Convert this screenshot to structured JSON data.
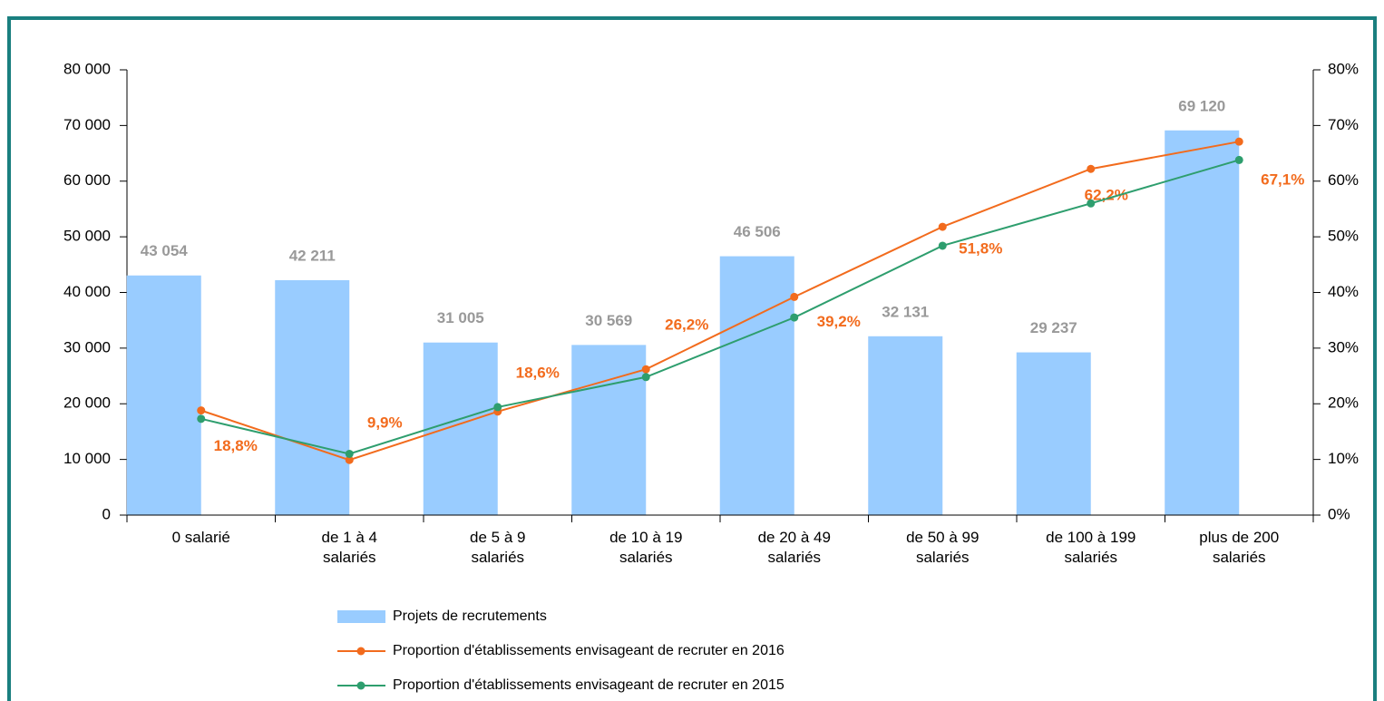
{
  "chart_data": {
    "type": "bar_line",
    "categories": [
      "0 salarié",
      "de 1 à 4\nsalariés",
      "de 5 à 9\nsalariés",
      "de 10 à 19\nsalariés",
      "de 20 à 49\nsalariés",
      "de 50 à 99\nsalariés",
      "de 100 à 199\nsalariés",
      "plus de 200\nsalariés"
    ],
    "series": [
      {
        "name": "Projets de recrutements",
        "type": "bar",
        "color": "#99ccff",
        "values": [
          43054,
          42211,
          31005,
          30569,
          46506,
          32131,
          29237,
          69120
        ],
        "value_labels": [
          "43 054",
          "42 211",
          "31 005",
          "30 569",
          "46 506",
          "32 131",
          "29 237",
          "69 120"
        ]
      },
      {
        "name": "Proportion d'établissements envisageant de recruter en 2016",
        "type": "line",
        "axis": "y2",
        "color": "#f26b1d",
        "values": [
          18.8,
          9.9,
          18.6,
          26.2,
          39.2,
          51.8,
          62.2,
          67.1
        ],
        "value_labels": [
          "18,8%",
          "9,9%",
          "18,6%",
          "26,2%",
          "39,2%",
          "51,8%",
          "62,2%",
          "67,1%"
        ]
      },
      {
        "name": "Proportion d'établissements envisageant de recruter en 2015",
        "type": "line",
        "axis": "y2",
        "color": "#2e9e6e",
        "values": [
          17.3,
          11.0,
          19.4,
          24.8,
          35.5,
          48.4,
          56.0,
          63.8
        ]
      }
    ],
    "ylim": [
      0,
      80000
    ],
    "yticks": [
      {
        "value": 0,
        "label": "0"
      },
      {
        "value": 10000,
        "label": "10 000"
      },
      {
        "value": 20000,
        "label": "20 000"
      },
      {
        "value": 30000,
        "label": "30 000"
      },
      {
        "value": 40000,
        "label": "40 000"
      },
      {
        "value": 50000,
        "label": "50 000"
      },
      {
        "value": 60000,
        "label": "60 000"
      },
      {
        "value": 70000,
        "label": "70 000"
      },
      {
        "value": 80000,
        "label": "80 000"
      }
    ],
    "y2lim": [
      0,
      80
    ],
    "y2ticks": [
      {
        "value": 0,
        "label": "0%"
      },
      {
        "value": 10,
        "label": "10%"
      },
      {
        "value": 20,
        "label": "20%"
      },
      {
        "value": 30,
        "label": "30%"
      },
      {
        "value": 40,
        "label": "40%"
      },
      {
        "value": 50,
        "label": "50%"
      },
      {
        "value": 60,
        "label": "60%"
      },
      {
        "value": 70,
        "label": "70%"
      },
      {
        "value": 80,
        "label": "80%"
      }
    ]
  }
}
